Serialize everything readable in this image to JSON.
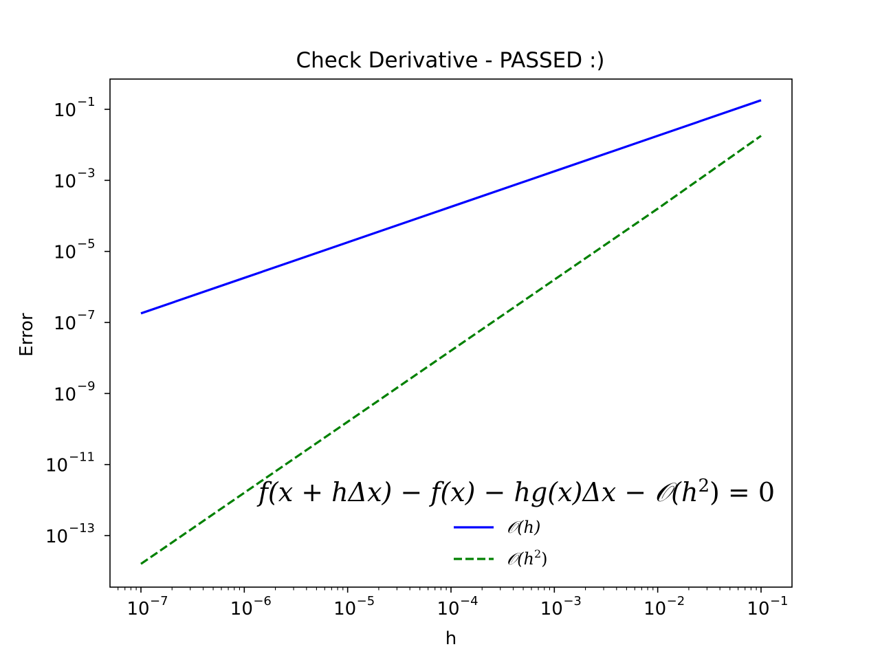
{
  "chart_data": {
    "type": "line",
    "title": "Check Derivative - PASSED :)",
    "xlabel": "h",
    "ylabel": "Error",
    "xscale": "log",
    "yscale": "log",
    "xlim": [
      5e-08,
      0.2
    ],
    "ylim": [
      5e-15,
      0.6
    ],
    "grid": false,
    "legend_placement": "lower center",
    "x_tick_labels": [
      "10",
      "10",
      "10",
      "10",
      "10",
      "10",
      "10"
    ],
    "x_tick_exponents": [
      "−7",
      "−6",
      "−5",
      "−4",
      "−3",
      "−2",
      "−1"
    ],
    "x_tick_values": [
      1e-07,
      1e-06,
      1e-05,
      0.0001,
      0.001,
      0.01,
      0.1
    ],
    "y_tick_labels": [
      "10",
      "10",
      "10",
      "10",
      "10",
      "10",
      "10"
    ],
    "y_tick_exponents": [
      "−13",
      "−11",
      "−9",
      "−7",
      "−5",
      "−3",
      "−1"
    ],
    "y_tick_values": [
      1e-13,
      1e-11,
      1e-09,
      1e-07,
      1e-05,
      0.001,
      0.1
    ],
    "series": [
      {
        "name": "𝒪(h)",
        "legend_base": "𝒪(h)",
        "legend_sup": "",
        "color": "#0000ff",
        "linestyle": "solid",
        "x": [
          1e-07,
          1e-06,
          1e-05,
          0.0001,
          0.001,
          0.01,
          0.1
        ],
        "y": [
          1.8e-07,
          1.8e-06,
          1.8e-05,
          0.00018,
          0.0018,
          0.018,
          0.18
        ]
      },
      {
        "name": "𝒪(h²)",
        "legend_base": "𝒪(h",
        "legend_sup": "2",
        "legend_tail": ")",
        "color": "#008000",
        "linestyle": "dashed",
        "x": [
          1e-07,
          1e-06,
          1e-05,
          0.0001,
          0.001,
          0.01,
          0.1
        ],
        "y": [
          1.6e-14,
          1.6e-12,
          1.6e-10,
          1.6e-08,
          1.6e-06,
          0.00016,
          0.018
        ]
      }
    ],
    "annotation": {
      "part1": "f(x + hΔx) − f(x) − hg(x)Δx − 𝒪(h",
      "sup": "2",
      "part2": ") = 0"
    }
  }
}
